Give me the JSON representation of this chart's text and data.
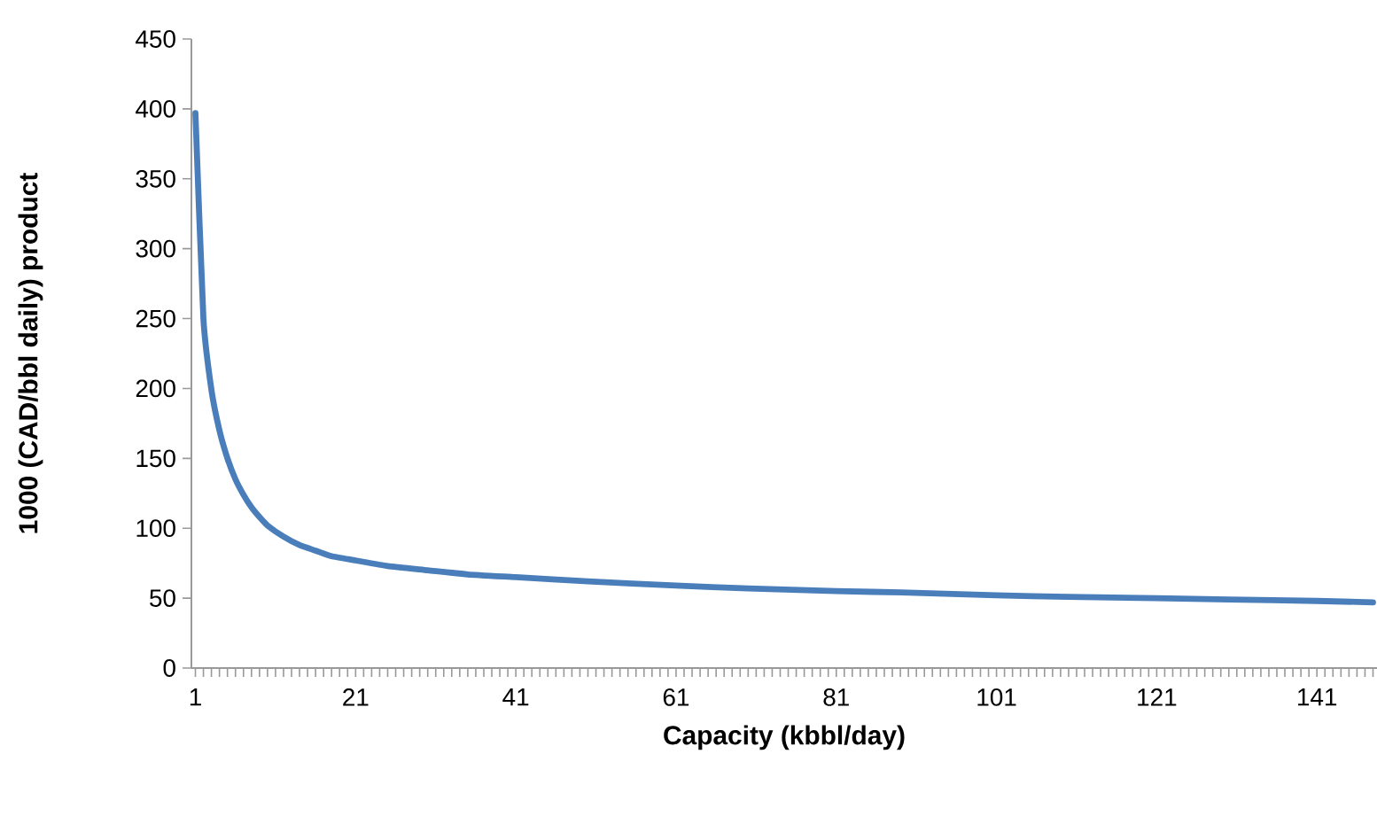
{
  "chart_data": {
    "type": "line",
    "xlabel": "Capacity (kbbl/day)",
    "ylabel": "1000 (CAD/bbl daily) product",
    "x": [
      1,
      2,
      3,
      4,
      5,
      6,
      7,
      8,
      9,
      10,
      12,
      14,
      16,
      18,
      21,
      25,
      30,
      35,
      41,
      50,
      61,
      70,
      81,
      90,
      101,
      110,
      121,
      130,
      141,
      148
    ],
    "series": [
      {
        "color": "#4a7ebb",
        "values": [
          397,
          250,
          199,
          170,
          150,
          135,
          124,
          115,
          108,
          102,
          94,
          88,
          84,
          80,
          77,
          73,
          70,
          67,
          65,
          62,
          59,
          57,
          55,
          54,
          52,
          51,
          50,
          49,
          48,
          47
        ]
      }
    ],
    "xlim": [
      0.5,
      148.5
    ],
    "xticks": [
      1,
      {
        "value": 2,
        "label": null
      },
      {
        "value": 3,
        "label": null
      },
      {
        "value": 4,
        "label": null
      },
      {
        "value": 5,
        "label": null
      },
      {
        "value": 6,
        "label": null
      },
      {
        "value": 7,
        "label": null
      },
      {
        "value": 8,
        "label": null
      },
      {
        "value": 9,
        "label": null
      },
      {
        "value": 10,
        "label": null
      },
      {
        "value": 11,
        "label": null
      },
      {
        "value": 12,
        "label": null
      },
      {
        "value": 13,
        "label": null
      },
      {
        "value": 14,
        "label": null
      },
      {
        "value": 15,
        "label": null
      },
      {
        "value": 16,
        "label": null
      },
      {
        "value": 17,
        "label": null
      },
      {
        "value": 18,
        "label": null
      },
      {
        "value": 19,
        "label": null
      },
      {
        "value": 20,
        "label": null
      },
      21,
      {
        "value": 22,
        "label": null
      },
      {
        "value": 23,
        "label": null
      },
      {
        "value": 24,
        "label": null
      },
      {
        "value": 25,
        "label": null
      },
      {
        "value": 26,
        "label": null
      },
      {
        "value": 27,
        "label": null
      },
      {
        "value": 28,
        "label": null
      },
      {
        "value": 29,
        "label": null
      },
      {
        "value": 30,
        "label": null
      },
      {
        "value": 31,
        "label": null
      },
      {
        "value": 32,
        "label": null
      },
      {
        "value": 33,
        "label": null
      },
      {
        "value": 34,
        "label": null
      },
      {
        "value": 35,
        "label": null
      },
      {
        "value": 36,
        "label": null
      },
      {
        "value": 37,
        "label": null
      },
      {
        "value": 38,
        "label": null
      },
      {
        "value": 39,
        "label": null
      },
      {
        "value": 40,
        "label": null
      },
      41,
      {
        "value": 42,
        "label": null
      },
      {
        "value": 43,
        "label": null
      },
      {
        "value": 44,
        "label": null
      },
      {
        "value": 45,
        "label": null
      },
      {
        "value": 46,
        "label": null
      },
      {
        "value": 47,
        "label": null
      },
      {
        "value": 48,
        "label": null
      },
      {
        "value": 49,
        "label": null
      },
      {
        "value": 50,
        "label": null
      },
      {
        "value": 51,
        "label": null
      },
      {
        "value": 52,
        "label": null
      },
      {
        "value": 53,
        "label": null
      },
      {
        "value": 54,
        "label": null
      },
      {
        "value": 55,
        "label": null
      },
      {
        "value": 56,
        "label": null
      },
      {
        "value": 57,
        "label": null
      },
      {
        "value": 58,
        "label": null
      },
      {
        "value": 59,
        "label": null
      },
      {
        "value": 60,
        "label": null
      },
      61,
      {
        "value": 62,
        "label": null
      },
      {
        "value": 63,
        "label": null
      },
      {
        "value": 64,
        "label": null
      },
      {
        "value": 65,
        "label": null
      },
      {
        "value": 66,
        "label": null
      },
      {
        "value": 67,
        "label": null
      },
      {
        "value": 68,
        "label": null
      },
      {
        "value": 69,
        "label": null
      },
      {
        "value": 70,
        "label": null
      },
      {
        "value": 71,
        "label": null
      },
      {
        "value": 72,
        "label": null
      },
      {
        "value": 73,
        "label": null
      },
      {
        "value": 74,
        "label": null
      },
      {
        "value": 75,
        "label": null
      },
      {
        "value": 76,
        "label": null
      },
      {
        "value": 77,
        "label": null
      },
      {
        "value": 78,
        "label": null
      },
      {
        "value": 79,
        "label": null
      },
      {
        "value": 80,
        "label": null
      },
      81,
      {
        "value": 82,
        "label": null
      },
      {
        "value": 83,
        "label": null
      },
      {
        "value": 84,
        "label": null
      },
      {
        "value": 85,
        "label": null
      },
      {
        "value": 86,
        "label": null
      },
      {
        "value": 87,
        "label": null
      },
      {
        "value": 88,
        "label": null
      },
      {
        "value": 89,
        "label": null
      },
      {
        "value": 90,
        "label": null
      },
      {
        "value": 91,
        "label": null
      },
      {
        "value": 92,
        "label": null
      },
      {
        "value": 93,
        "label": null
      },
      {
        "value": 94,
        "label": null
      },
      {
        "value": 95,
        "label": null
      },
      {
        "value": 96,
        "label": null
      },
      {
        "value": 97,
        "label": null
      },
      {
        "value": 98,
        "label": null
      },
      {
        "value": 99,
        "label": null
      },
      {
        "value": 100,
        "label": null
      },
      101,
      {
        "value": 102,
        "label": null
      },
      {
        "value": 103,
        "label": null
      },
      {
        "value": 104,
        "label": null
      },
      {
        "value": 105,
        "label": null
      },
      {
        "value": 106,
        "label": null
      },
      {
        "value": 107,
        "label": null
      },
      {
        "value": 108,
        "label": null
      },
      {
        "value": 109,
        "label": null
      },
      {
        "value": 110,
        "label": null
      },
      {
        "value": 111,
        "label": null
      },
      {
        "value": 112,
        "label": null
      },
      {
        "value": 113,
        "label": null
      },
      {
        "value": 114,
        "label": null
      },
      {
        "value": 115,
        "label": null
      },
      {
        "value": 116,
        "label": null
      },
      {
        "value": 117,
        "label": null
      },
      {
        "value": 118,
        "label": null
      },
      {
        "value": 119,
        "label": null
      },
      {
        "value": 120,
        "label": null
      },
      121,
      {
        "value": 122,
        "label": null
      },
      {
        "value": 123,
        "label": null
      },
      {
        "value": 124,
        "label": null
      },
      {
        "value": 125,
        "label": null
      },
      {
        "value": 126,
        "label": null
      },
      {
        "value": 127,
        "label": null
      },
      {
        "value": 128,
        "label": null
      },
      {
        "value": 129,
        "label": null
      },
      {
        "value": 130,
        "label": null
      },
      {
        "value": 131,
        "label": null
      },
      {
        "value": 132,
        "label": null
      },
      {
        "value": 133,
        "label": null
      },
      {
        "value": 134,
        "label": null
      },
      {
        "value": 135,
        "label": null
      },
      {
        "value": 136,
        "label": null
      },
      {
        "value": 137,
        "label": null
      },
      {
        "value": 138,
        "label": null
      },
      {
        "value": 139,
        "label": null
      },
      {
        "value": 140,
        "label": null
      },
      141,
      {
        "value": 142,
        "label": null
      },
      {
        "value": 143,
        "label": null
      },
      {
        "value": 144,
        "label": null
      },
      {
        "value": 145,
        "label": null
      },
      {
        "value": 146,
        "label": null
      },
      {
        "value": 147,
        "label": null
      },
      {
        "value": 148,
        "label": null
      }
    ],
    "ylim": [
      0,
      450
    ],
    "yticks": [
      0,
      50,
      100,
      150,
      200,
      250,
      300,
      350,
      400,
      450
    ]
  }
}
